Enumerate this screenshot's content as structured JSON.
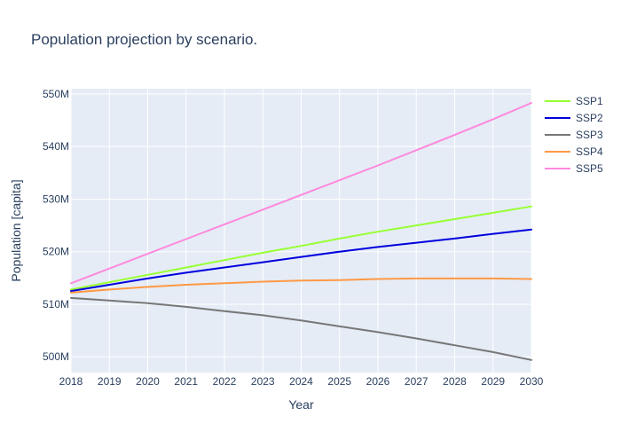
{
  "chart_data": {
    "type": "line",
    "title": "Population projection by scenario.",
    "xlabel": "Year",
    "ylabel": "Population [capita]",
    "x": [
      2018,
      2019,
      2020,
      2021,
      2022,
      2023,
      2024,
      2025,
      2026,
      2027,
      2028,
      2029,
      2030
    ],
    "xlim": [
      2018,
      2030
    ],
    "ylim": [
      497000000,
      551000000
    ],
    "yticks": [
      500000000,
      510000000,
      520000000,
      530000000,
      540000000,
      550000000
    ],
    "ytick_labels": [
      "500M",
      "510M",
      "520M",
      "530M",
      "540M",
      "550M"
    ],
    "xtick_labels": [
      "2018",
      "2019",
      "2020",
      "2021",
      "2022",
      "2023",
      "2024",
      "2025",
      "2026",
      "2027",
      "2028",
      "2029",
      "2030"
    ],
    "grid": true,
    "legend_position": "top-right",
    "plot_background": "#e5ecf6",
    "series": [
      {
        "name": "SSP1",
        "color": "#99ff33",
        "values": [
          512800000,
          514200000,
          515600000,
          517000000,
          518400000,
          519800000,
          521100000,
          522500000,
          523800000,
          525000000,
          526200000,
          527400000,
          528600000
        ]
      },
      {
        "name": "SSP2",
        "color": "#0000dd",
        "values": [
          512500000,
          513700000,
          514900000,
          516000000,
          517000000,
          518000000,
          519000000,
          520000000,
          520900000,
          521700000,
          522500000,
          523400000,
          524200000
        ]
      },
      {
        "name": "SSP3",
        "color": "#777777",
        "values": [
          511200000,
          510700000,
          510200000,
          509500000,
          508700000,
          507900000,
          506900000,
          505800000,
          504700000,
          503500000,
          502200000,
          500900000,
          499400000
        ]
      },
      {
        "name": "SSP4",
        "color": "#ff9944",
        "values": [
          512200000,
          512800000,
          513300000,
          513700000,
          514000000,
          514300000,
          514500000,
          514600000,
          514800000,
          514900000,
          514900000,
          514900000,
          514800000
        ]
      },
      {
        "name": "SSP5",
        "color": "#ff88dd",
        "values": [
          514000000,
          516800000,
          519600000,
          522400000,
          525200000,
          528000000,
          530800000,
          533600000,
          536400000,
          539300000,
          542200000,
          545200000,
          548300000
        ]
      }
    ]
  }
}
